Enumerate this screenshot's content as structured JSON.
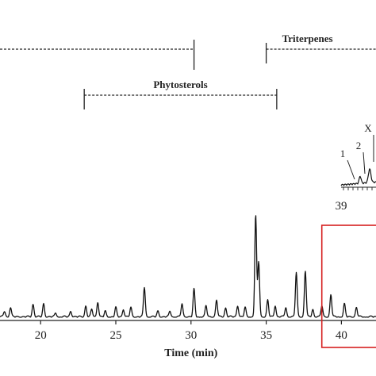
{
  "chart_data": {
    "type": "line",
    "title": "",
    "xlabel": "Time (min)",
    "ylabel": "",
    "xlim": [
      17.3,
      42.3
    ],
    "x_ticks": [
      "20",
      "25",
      "30",
      "35",
      "40"
    ],
    "grid": false,
    "colors": {
      "trace": "#111111",
      "highlight_box": "#d62020",
      "annotation": "#222222"
    },
    "series": [
      {
        "peaks": [
          {
            "x": 17.6,
            "height": 0.03
          },
          {
            "x": 18.0,
            "height": 0.05
          },
          {
            "x": 19.5,
            "height": 0.07
          },
          {
            "x": 20.2,
            "height": 0.07
          },
          {
            "x": 21.0,
            "height": 0.02
          },
          {
            "x": 22.0,
            "height": 0.03
          },
          {
            "x": 23.0,
            "height": 0.06
          },
          {
            "x": 23.4,
            "height": 0.04
          },
          {
            "x": 23.8,
            "height": 0.08
          },
          {
            "x": 24.3,
            "height": 0.03
          },
          {
            "x": 25.0,
            "height": 0.05
          },
          {
            "x": 25.5,
            "height": 0.04
          },
          {
            "x": 26.0,
            "height": 0.05
          },
          {
            "x": 26.9,
            "height": 0.16
          },
          {
            "x": 27.8,
            "height": 0.03
          },
          {
            "x": 28.6,
            "height": 0.03
          },
          {
            "x": 29.4,
            "height": 0.07
          },
          {
            "x": 30.2,
            "height": 0.15
          },
          {
            "x": 31.0,
            "height": 0.06
          },
          {
            "x": 31.7,
            "height": 0.09
          },
          {
            "x": 32.3,
            "height": 0.05
          },
          {
            "x": 33.1,
            "height": 0.06
          },
          {
            "x": 33.6,
            "height": 0.05
          },
          {
            "x": 34.3,
            "height": 0.55
          },
          {
            "x": 34.5,
            "height": 0.3
          },
          {
            "x": 35.1,
            "height": 0.09
          },
          {
            "x": 35.6,
            "height": 0.06
          },
          {
            "x": 36.3,
            "height": 0.05
          },
          {
            "x": 37.0,
            "height": 0.24
          },
          {
            "x": 37.6,
            "height": 0.25
          },
          {
            "x": 38.1,
            "height": 0.04
          },
          {
            "x": 38.7,
            "height": 0.06
          },
          {
            "x": 39.3,
            "height": 0.12
          },
          {
            "x": 40.2,
            "height": 0.07
          },
          {
            "x": 41.0,
            "height": 0.05
          }
        ]
      }
    ],
    "annotations": [
      {
        "label": "",
        "x_start": 17.3,
        "x_end": 30.2,
        "row": "upper"
      },
      {
        "label": "Triterpenes",
        "x_start": 35.0,
        "x_end": 42.3,
        "row": "upper"
      },
      {
        "label": "Phytosterols",
        "x_start": 22.9,
        "x_end": 35.7,
        "row": "lower"
      }
    ],
    "highlight_box": {
      "x_start": 38.7,
      "x_end": 42.3
    },
    "inset": {
      "x_axis_label": "39",
      "peak_labels": [
        "1",
        "2",
        "X"
      ]
    }
  }
}
